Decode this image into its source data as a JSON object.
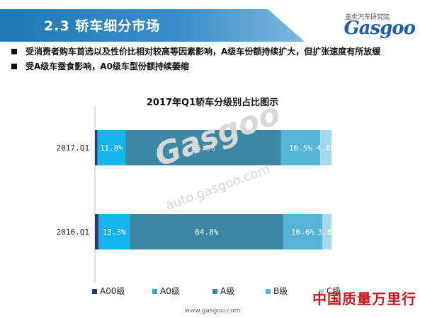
{
  "header": {
    "section": "2.3   轿车细分市场",
    "logo_sub": "盖世汽车研究院",
    "logo_main": "Gasgoo"
  },
  "bullets": [
    "受消费者购车首选以及性价比相对较高等因素影响，A级车份额持续扩大，但扩张速度有所放缓",
    "受A级车蚕食影响，A0级车型份额持续萎缩"
  ],
  "watermark": {
    "text": "Gasgoo",
    "url": "auto.gasgoo.com"
  },
  "footer": {
    "url": "www.gasgoo.com",
    "slogan": "中国质量万里行"
  },
  "chart_data": {
    "type": "bar",
    "orientation": "horizontal",
    "stacked": true,
    "percent_stacked": true,
    "title": "2017年Q1轿车分级别占比图示",
    "categories": [
      "2017.Q1",
      "2016.Q1"
    ],
    "series": [
      {
        "name": "A00级",
        "color": "#1f3f73",
        "values": [
          1.1,
          1.5
        ],
        "labels": [
          "",
          ""
        ]
      },
      {
        "name": "A0级",
        "color": "#16b4ee",
        "values": [
          11.8,
          13.3
        ],
        "labels": [
          "11.8%",
          "13.3%"
        ]
      },
      {
        "name": "A级",
        "color": "#3b88a4",
        "values": [
          65.8,
          64.8
        ],
        "labels": [
          "65.8%",
          "64.8%"
        ]
      },
      {
        "name": "B级",
        "color": "#55b5d6",
        "values": [
          16.5,
          16.6
        ],
        "labels": [
          "16.5%",
          "16.6%"
        ]
      },
      {
        "name": "C级",
        "color": "#a9d7e8",
        "values": [
          4.8,
          3.8
        ],
        "labels": [
          "4.8%",
          "3.8%"
        ]
      }
    ],
    "xlim": [
      0,
      100
    ],
    "grid": false,
    "legend": "bottom"
  }
}
